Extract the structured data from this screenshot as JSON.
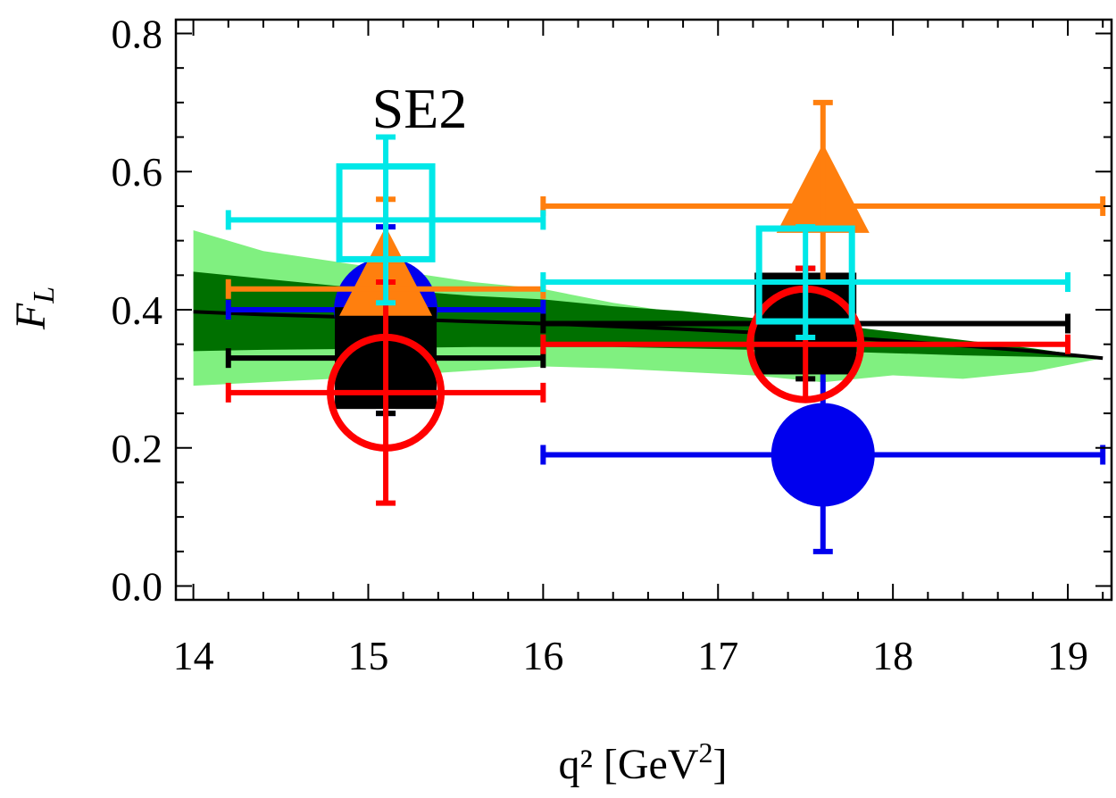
{
  "chart_data": {
    "type": "scatter",
    "title": "",
    "panel_label": "SE2",
    "xlabel": "q²  [GeV",
    "xlabel_sup": "2",
    "xlabel_close": "]",
    "ylabel": "F",
    "ylabel_sub": "L",
    "xlim": [
      13.9,
      19.25
    ],
    "ylim": [
      -0.02,
      0.82
    ],
    "x_ticks": [
      14,
      15,
      16,
      17,
      18,
      19
    ],
    "x_tick_labels": [
      "14",
      "15",
      "16",
      "17",
      "18",
      "19"
    ],
    "y_ticks": [
      0.0,
      0.2,
      0.4,
      0.6,
      0.8
    ],
    "y_tick_labels": [
      "0.0",
      "0.2",
      "0.4",
      "0.6",
      "0.8"
    ],
    "grid": false,
    "colors": {
      "light_band": "#80f080",
      "dark_band": "#007000",
      "theory": "#000000",
      "orange": "#ff7f0e",
      "blue": "#0000ee",
      "red": "#ff0000",
      "cyan": "#00e8e8",
      "black": "#000000"
    },
    "theory_band": {
      "x": [
        14.0,
        14.4,
        14.8,
        15.2,
        15.6,
        16.0,
        16.4,
        16.8,
        17.2,
        17.6,
        18.0,
        18.4,
        18.8,
        19.2
      ],
      "central": [
        0.397,
        0.393,
        0.39,
        0.386,
        0.383,
        0.38,
        0.376,
        0.372,
        0.367,
        0.362,
        0.355,
        0.348,
        0.34,
        0.33
      ],
      "inner_upper": [
        0.455,
        0.445,
        0.435,
        0.428,
        0.42,
        0.415,
        0.405,
        0.398,
        0.388,
        0.38,
        0.368,
        0.356,
        0.344,
        0.33
      ],
      "inner_lower": [
        0.34,
        0.342,
        0.343,
        0.345,
        0.346,
        0.346,
        0.346,
        0.344,
        0.342,
        0.34,
        0.337,
        0.334,
        0.332,
        0.33
      ],
      "outer_upper": [
        0.515,
        0.485,
        0.47,
        0.455,
        0.44,
        0.43,
        0.41,
        0.395,
        0.385,
        0.37,
        0.358,
        0.35,
        0.34,
        0.33
      ],
      "outer_lower": [
        0.29,
        0.295,
        0.3,
        0.305,
        0.312,
        0.318,
        0.315,
        0.31,
        0.305,
        0.295,
        0.305,
        0.3,
        0.31,
        0.33
      ]
    },
    "series": [
      {
        "name": "orange-triangle",
        "marker": "triangle",
        "color": "orange",
        "points": [
          {
            "x": 15.1,
            "y": 0.43,
            "xerr": [
              14.2,
              16.0
            ],
            "yerr": [
              0.44,
              0.56
            ]
          },
          {
            "x": 17.6,
            "y": 0.55,
            "xerr": [
              16.0,
              19.2
            ],
            "yerr": [
              0.44,
              0.7
            ]
          }
        ]
      },
      {
        "name": "blue-disc",
        "marker": "disc",
        "color": "blue",
        "points": [
          {
            "x": 15.1,
            "y": 0.4,
            "xerr": [
              14.2,
              16.0
            ],
            "yerr": [
              0.25,
              0.52
            ]
          },
          {
            "x": 17.6,
            "y": 0.19,
            "xerr": [
              16.0,
              19.2
            ],
            "yerr": [
              0.05,
              0.32
            ]
          }
        ]
      },
      {
        "name": "black-square",
        "marker": "square",
        "color": "black",
        "points": [
          {
            "x": 15.1,
            "y": 0.33,
            "xerr": [
              14.2,
              16.0
            ],
            "yerr": [
              0.25,
              0.42
            ]
          },
          {
            "x": 17.5,
            "y": 0.38,
            "xerr": [
              16.0,
              19.0
            ],
            "yerr": [
              0.3,
              0.46
            ]
          }
        ]
      },
      {
        "name": "red-circle",
        "marker": "circle",
        "color": "red",
        "points": [
          {
            "x": 15.1,
            "y": 0.28,
            "xerr": [
              14.2,
              16.0
            ],
            "yerr": [
              0.12,
              0.44
            ]
          },
          {
            "x": 17.5,
            "y": 0.35,
            "xerr": [
              16.0,
              19.0
            ],
            "yerr": [
              0.27,
              0.46
            ]
          }
        ]
      },
      {
        "name": "cyan-open-square",
        "marker": "open-square",
        "color": "cyan",
        "points": [
          {
            "x": 15.1,
            "y": 0.53,
            "xerr": [
              14.2,
              16.0
            ],
            "yerr": [
              0.41,
              0.65
            ]
          },
          {
            "x": 17.5,
            "y": 0.44,
            "xerr": [
              16.0,
              19.0
            ],
            "yerr": [
              0.36,
              0.52
            ]
          }
        ]
      }
    ]
  }
}
